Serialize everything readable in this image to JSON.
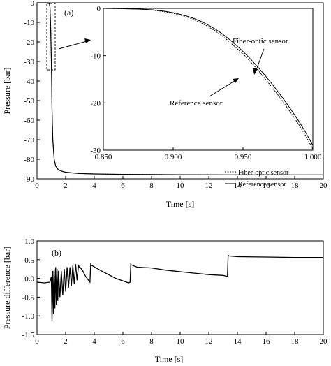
{
  "chart_data": [
    {
      "type": "line",
      "panel_tag": "(a)",
      "xlabel": "Time [s]",
      "ylabel": "Pressure [bar]",
      "xlim": [
        0,
        20
      ],
      "ylim": [
        -90,
        0
      ],
      "xticks": [
        "0",
        "2",
        "4",
        "6",
        "8",
        "10",
        "12",
        "14",
        "16",
        "18",
        "20"
      ],
      "yticks": [
        "0",
        "-10",
        "-20",
        "-30",
        "-40",
        "-50",
        "-60",
        "-70",
        "-80",
        "-90"
      ],
      "grid": false,
      "legend_position": "bottom-right",
      "series": [
        {
          "name": "Fiber-optic sensor",
          "style": "dashed",
          "x": [
            0.0,
            0.85,
            0.9,
            0.95,
            1.0,
            1.02,
            1.05,
            1.1,
            1.2,
            1.3,
            1.5,
            1.8,
            2.0,
            2.5,
            3.0,
            4.0,
            5.0,
            6.0,
            8.0,
            10.0,
            14.0,
            20.0
          ],
          "y": [
            0.0,
            0.0,
            -2.0,
            -12.0,
            -29.0,
            -38.0,
            -55.0,
            -70.0,
            -80.0,
            -83.5,
            -85.5,
            -86.3,
            -86.6,
            -87.0,
            -87.3,
            -87.5,
            -87.6,
            -87.7,
            -87.8,
            -87.9,
            -88.0,
            -88.0
          ]
        },
        {
          "name": "Reference sensor",
          "style": "solid",
          "x": [
            0.0,
            0.85,
            0.9,
            0.95,
            1.0,
            1.02,
            1.05,
            1.1,
            1.2,
            1.3,
            1.5,
            1.8,
            2.0,
            2.5,
            3.0,
            4.0,
            5.0,
            6.0,
            8.0,
            10.0,
            14.0,
            20.0
          ],
          "y": [
            0.0,
            0.0,
            -2.0,
            -12.0,
            -29.0,
            -38.0,
            -55.0,
            -70.0,
            -80.0,
            -83.5,
            -85.5,
            -86.3,
            -86.6,
            -87.0,
            -87.3,
            -87.5,
            -87.6,
            -87.7,
            -87.8,
            -87.9,
            -88.0,
            -88.0
          ]
        }
      ],
      "inset": {
        "xlim": [
          0.85,
          1.0
        ],
        "ylim": [
          -30,
          0
        ],
        "xticks": [
          "0.850",
          "0.900",
          "0.950",
          "1.000"
        ],
        "yticks": [
          "0",
          "-10",
          "-20",
          "-30"
        ],
        "annotations": [
          "Fiber-optic sensor",
          "Reference sensor"
        ],
        "series": [
          {
            "name": "Fiber-optic sensor",
            "x": [
              0.85,
              0.86,
              0.87,
              0.875,
              0.88,
              0.885,
              0.89,
              0.895,
              0.9,
              0.905,
              0.91,
              0.915,
              0.92,
              0.925,
              0.93,
              0.935,
              0.94,
              0.945,
              0.95,
              0.955,
              0.96,
              0.965,
              0.97,
              0.975,
              0.98,
              0.985,
              0.99,
              0.995,
              1.0
            ],
            "y": [
              0.0,
              -0.05,
              -0.1,
              -0.15,
              -0.25,
              -0.35,
              -0.55,
              -0.75,
              -1.05,
              -1.4,
              -1.85,
              -2.4,
              -3.05,
              -3.85,
              -4.75,
              -5.8,
              -7.0,
              -8.3,
              -9.6,
              -11.2,
              -12.8,
              -14.6,
              -16.4,
              -18.3,
              -20.3,
              -22.4,
              -24.6,
              -27.0,
              -29.8
            ]
          },
          {
            "name": "Reference sensor",
            "x": [
              0.85,
              0.86,
              0.87,
              0.875,
              0.88,
              0.885,
              0.89,
              0.895,
              0.9,
              0.905,
              0.91,
              0.915,
              0.92,
              0.925,
              0.93,
              0.935,
              0.94,
              0.945,
              0.95,
              0.955,
              0.96,
              0.965,
              0.97,
              0.975,
              0.98,
              0.985,
              0.99,
              0.995,
              1.0
            ],
            "y": [
              0.0,
              -0.05,
              -0.1,
              -0.15,
              -0.2,
              -0.3,
              -0.45,
              -0.65,
              -0.9,
              -1.25,
              -1.65,
              -2.15,
              -2.75,
              -3.5,
              -4.35,
              -5.35,
              -6.5,
              -7.75,
              -9.1,
              -10.6,
              -12.2,
              -13.9,
              -15.7,
              -17.6,
              -19.6,
              -21.7,
              -23.9,
              -26.3,
              -29.0
            ]
          }
        ]
      }
    },
    {
      "type": "line",
      "panel_tag": "(b)",
      "xlabel": "Time [s]",
      "ylabel": "Pressure difference [bar]",
      "xlim": [
        0,
        20
      ],
      "ylim": [
        -1.5,
        1.0
      ],
      "xticks": [
        "0",
        "2",
        "4",
        "6",
        "8",
        "10",
        "12",
        "14",
        "16",
        "18",
        "20"
      ],
      "yticks": [
        "1.0",
        "0.5",
        "0.0",
        "-0.5",
        "-1.0",
        "-1.5"
      ],
      "grid": false,
      "series": [
        {
          "name": "",
          "x": [
            0.0,
            0.5,
            0.9,
            1.0,
            1.05,
            1.1,
            1.15,
            1.2,
            1.25,
            1.3,
            1.35,
            1.4,
            1.45,
            1.5,
            1.6,
            1.7,
            1.8,
            1.9,
            2.0,
            2.1,
            2.2,
            2.3,
            2.4,
            2.5,
            2.6,
            2.7,
            2.8,
            2.9,
            2.95,
            3.0,
            3.2,
            3.4,
            3.6,
            3.7,
            3.75,
            3.8,
            4.5,
            5.5,
            6.4,
            6.5,
            6.55,
            6.6,
            7.0,
            8.0,
            9.0,
            10.0,
            11.0,
            12.0,
            13.0,
            13.3,
            13.35,
            13.4,
            14.0,
            16.0,
            18.0,
            20.0
          ],
          "y": [
            -0.1,
            -0.12,
            -0.1,
            0.05,
            -1.15,
            0.2,
            -0.95,
            0.25,
            -0.8,
            0.3,
            -0.7,
            0.25,
            -0.6,
            0.2,
            -0.5,
            0.2,
            -0.45,
            0.25,
            -0.35,
            0.3,
            -0.25,
            0.3,
            -0.2,
            0.35,
            -0.15,
            0.38,
            -0.05,
            0.35,
            0.3,
            0.3,
            0.2,
            0.05,
            -0.05,
            -0.1,
            0.38,
            0.35,
            0.2,
            0.0,
            -0.12,
            -0.1,
            0.38,
            0.36,
            0.3,
            0.28,
            0.22,
            0.18,
            0.14,
            0.1,
            0.08,
            0.05,
            0.62,
            0.6,
            0.58,
            0.57,
            0.56,
            0.56
          ]
        }
      ]
    }
  ]
}
